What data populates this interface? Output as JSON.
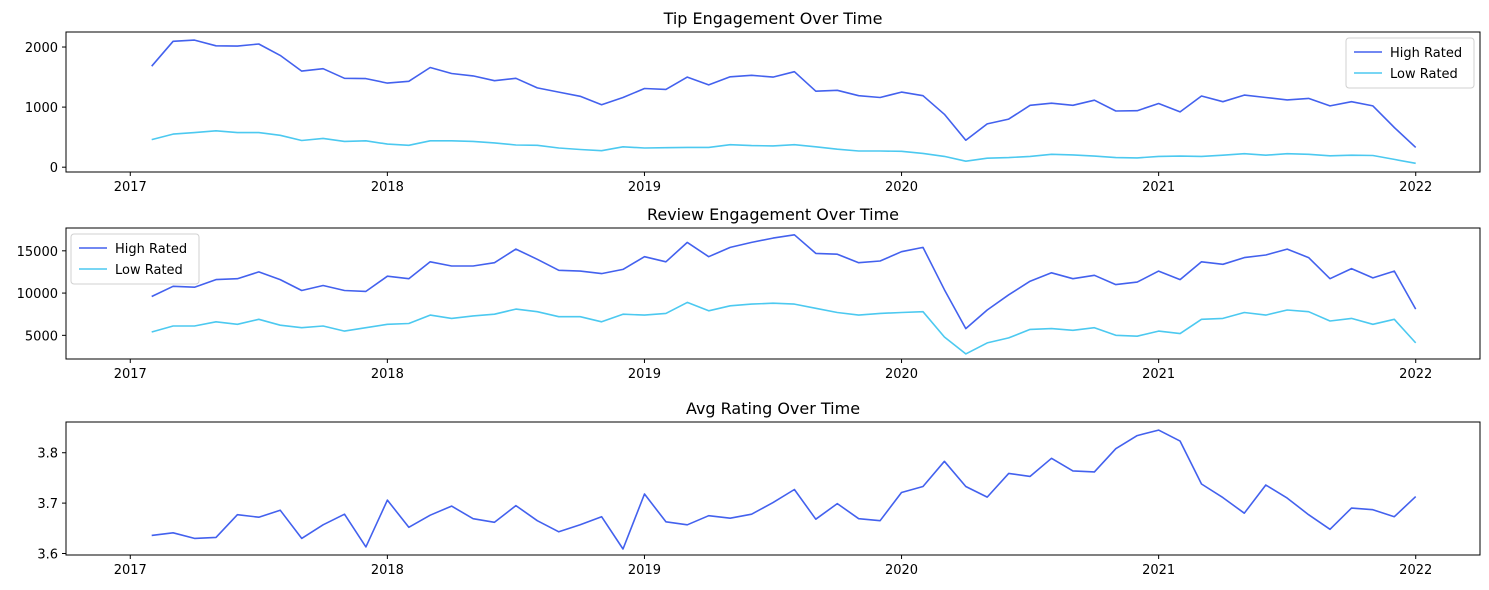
{
  "chart_data": [
    {
      "type": "line",
      "title": "Tip Engagement Over Time",
      "xlabel": "",
      "ylabel": "",
      "x_ticks": [
        "2017",
        "2018",
        "2019",
        "2020",
        "2021",
        "2022"
      ],
      "y_ticks": [
        "0",
        "1000",
        "2000"
      ],
      "ylim": [
        -80,
        2250
      ],
      "legend_position": "top-right",
      "series": [
        {
          "name": "High Rated",
          "color": "#4361ee",
          "values": [
            1680,
            2095,
            2115,
            2020,
            2015,
            2050,
            1860,
            1600,
            1640,
            1480,
            1475,
            1400,
            1430,
            1660,
            1560,
            1520,
            1440,
            1480,
            1320,
            1250,
            1180,
            1040,
            1160,
            1310,
            1295,
            1500,
            1370,
            1505,
            1530,
            1500,
            1590,
            1265,
            1280,
            1190,
            1160,
            1250,
            1190,
            880,
            450,
            720,
            800,
            1030,
            1065,
            1030,
            1115,
            935,
            940,
            1060,
            920,
            1185,
            1090,
            1200,
            1160,
            1120,
            1145,
            1020,
            1090,
            1020,
            660,
            330
          ]
        },
        {
          "name": "Low Rated",
          "color": "#4cc9f0",
          "values": [
            460,
            550,
            575,
            605,
            575,
            575,
            530,
            445,
            480,
            430,
            440,
            385,
            365,
            440,
            440,
            430,
            405,
            370,
            365,
            320,
            295,
            275,
            340,
            320,
            325,
            330,
            330,
            375,
            360,
            355,
            375,
            340,
            300,
            270,
            270,
            265,
            230,
            180,
            100,
            150,
            160,
            180,
            215,
            205,
            185,
            160,
            155,
            180,
            185,
            180,
            200,
            225,
            200,
            225,
            215,
            190,
            200,
            195,
            130,
            65
          ]
        }
      ]
    },
    {
      "type": "line",
      "title": "Review Engagement Over Time",
      "xlabel": "",
      "ylabel": "",
      "x_ticks": [
        "2017",
        "2018",
        "2019",
        "2020",
        "2021",
        "2022"
      ],
      "y_ticks": [
        "5000",
        "10000",
        "15000"
      ],
      "ylim": [
        2200,
        17700
      ],
      "legend_position": "top-left",
      "series": [
        {
          "name": "High Rated",
          "color": "#4361ee",
          "values": [
            9600,
            10800,
            10700,
            11600,
            11700,
            12500,
            11600,
            10300,
            10900,
            10300,
            10200,
            12000,
            11700,
            13700,
            13200,
            13200,
            13600,
            15200,
            14000,
            12700,
            12600,
            12300,
            12800,
            14300,
            13700,
            16000,
            14300,
            15400,
            16000,
            16500,
            16900,
            14700,
            14600,
            13600,
            13800,
            14900,
            15400,
            10400,
            5800,
            8000,
            9800,
            11400,
            12400,
            11700,
            12100,
            11000,
            11300,
            12600,
            11600,
            13700,
            13400,
            14200,
            14500,
            15200,
            14200,
            11700,
            12900,
            11800,
            12600,
            8100
          ]
        },
        {
          "name": "Low Rated",
          "color": "#4cc9f0",
          "values": [
            5400,
            6100,
            6100,
            6600,
            6300,
            6900,
            6200,
            5900,
            6100,
            5500,
            5900,
            6300,
            6400,
            7400,
            7000,
            7300,
            7500,
            8100,
            7800,
            7200,
            7200,
            6600,
            7500,
            7400,
            7600,
            8900,
            7900,
            8500,
            8700,
            8800,
            8700,
            8200,
            7700,
            7400,
            7600,
            7700,
            7800,
            4800,
            2800,
            4100,
            4700,
            5700,
            5800,
            5600,
            5900,
            5000,
            4900,
            5500,
            5200,
            6900,
            7000,
            7700,
            7400,
            8000,
            7800,
            6700,
            7000,
            6300,
            6900,
            4100
          ]
        }
      ]
    },
    {
      "type": "line",
      "title": "Avg Rating Over Time",
      "xlabel": "",
      "ylabel": "",
      "x_ticks": [
        "2017",
        "2018",
        "2019",
        "2020",
        "2021",
        "2022"
      ],
      "y_ticks": [
        "3.6",
        "3.7",
        "3.8"
      ],
      "ylim": [
        3.597,
        3.861
      ],
      "legend_position": "none",
      "series": [
        {
          "name": "",
          "color": "#4361ee",
          "values": [
            3.636,
            3.641,
            3.63,
            3.632,
            3.677,
            3.672,
            3.686,
            3.63,
            3.657,
            3.678,
            3.613,
            3.706,
            3.652,
            3.676,
            3.694,
            3.669,
            3.662,
            3.695,
            3.665,
            3.643,
            3.657,
            3.673,
            3.609,
            3.718,
            3.663,
            3.657,
            3.675,
            3.67,
            3.678,
            3.701,
            3.727,
            3.668,
            3.699,
            3.669,
            3.665,
            3.721,
            3.733,
            3.783,
            3.733,
            3.712,
            3.759,
            3.753,
            3.789,
            3.764,
            3.762,
            3.808,
            3.834,
            3.845,
            3.823,
            3.738,
            3.711,
            3.68,
            3.736,
            3.71,
            3.677,
            3.648,
            3.69,
            3.687,
            3.673,
            3.713
          ]
        }
      ]
    }
  ]
}
